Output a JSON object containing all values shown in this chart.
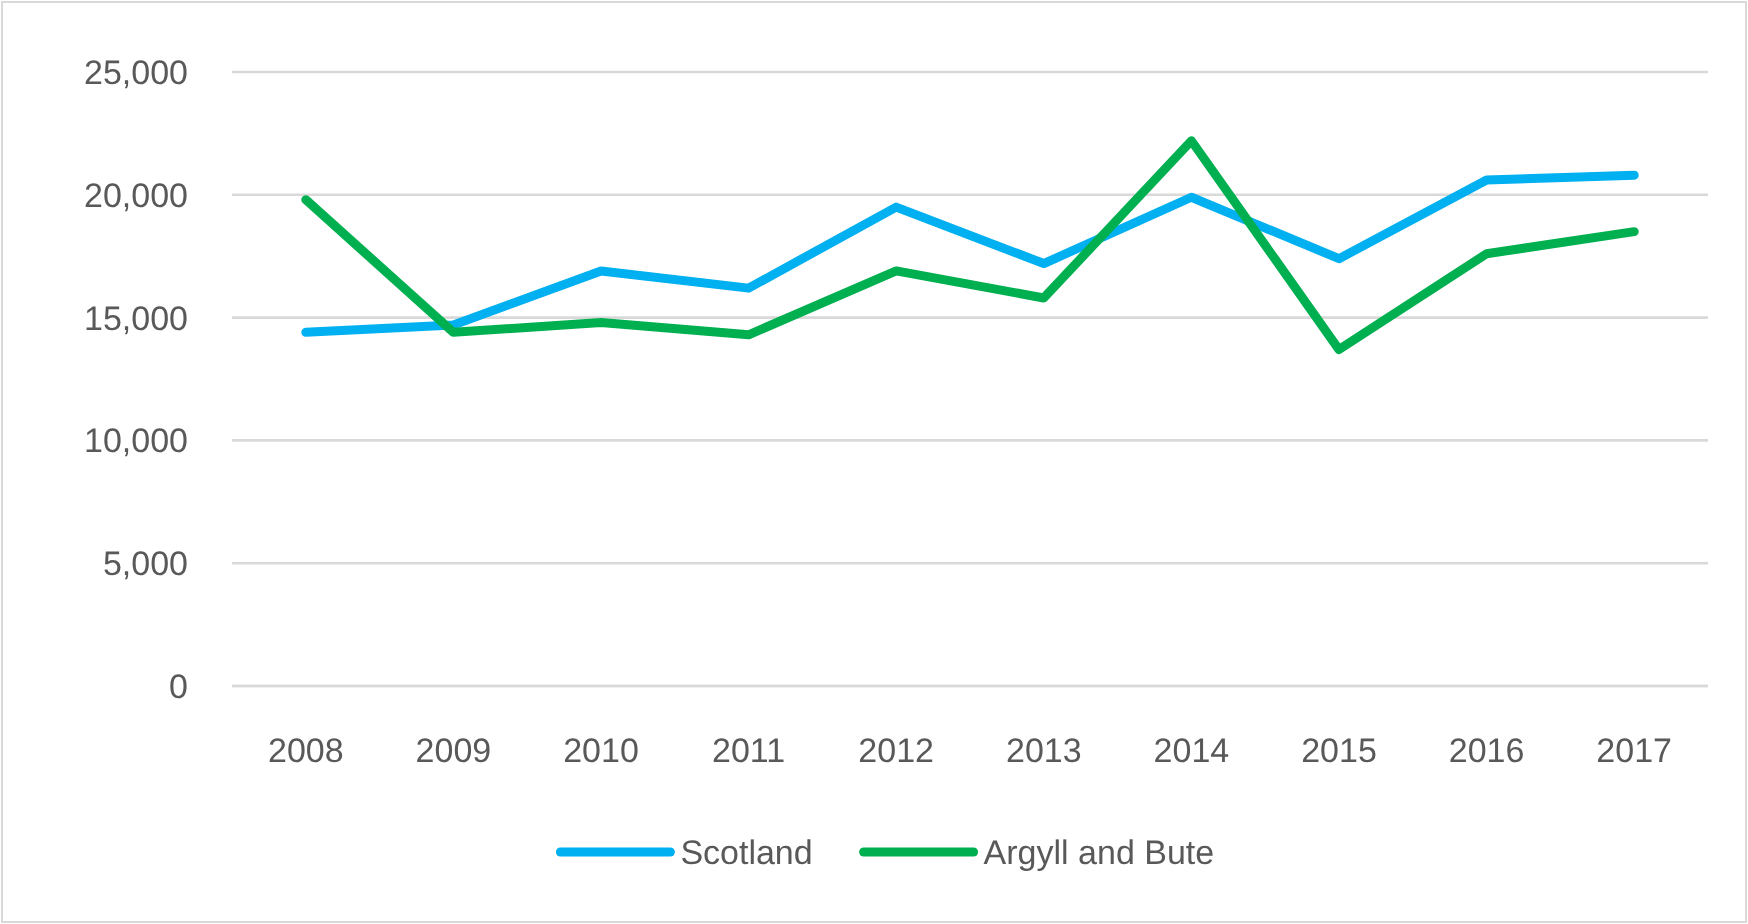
{
  "chart_data": {
    "type": "line",
    "categories": [
      "2008",
      "2009",
      "2010",
      "2011",
      "2012",
      "2013",
      "2014",
      "2015",
      "2016",
      "2017"
    ],
    "series": [
      {
        "name": "Scotland",
        "color": "#00b0f0",
        "values": [
          14400,
          14700,
          16900,
          16200,
          19500,
          17200,
          19900,
          17400,
          20600,
          20800
        ]
      },
      {
        "name": "Argyll and Bute",
        "color": "#00b050",
        "values": [
          19800,
          14400,
          14800,
          14300,
          16900,
          15800,
          22200,
          13700,
          17600,
          18500
        ]
      }
    ],
    "ylim": [
      0,
      25000
    ],
    "yticks": [
      {
        "value": 0,
        "label": "0"
      },
      {
        "value": 5000,
        "label": "5,000"
      },
      {
        "value": 10000,
        "label": "10,000"
      },
      {
        "value": 15000,
        "label": "15,000"
      },
      {
        "value": 20000,
        "label": "20,000"
      },
      {
        "value": 25000,
        "label": "25,000"
      }
    ],
    "grid": "y",
    "legend": "bottom",
    "marker": "none",
    "line_style": "solid"
  }
}
